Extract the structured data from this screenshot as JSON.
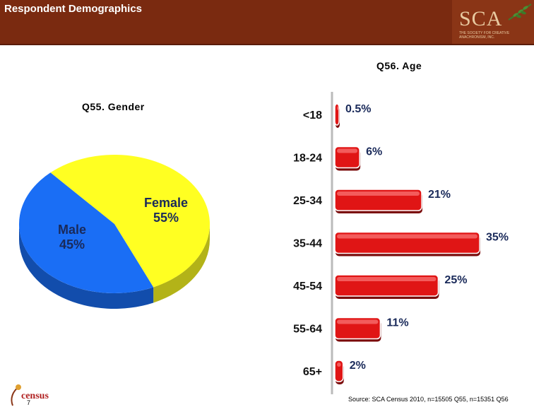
{
  "header": {
    "title": "Respondent Demographics",
    "logo_text": "SCA",
    "logo_sub": "THE SOCIETY FOR CREATIVE ANACHRONISM, INC."
  },
  "gender_title": "Q55. Gender",
  "age_title": "Q56. Age",
  "footer": {
    "page_number": "7",
    "source": "Source: SCA Census 2010, n=15505 Q55, n=15351 Q56",
    "badge_text": "census"
  },
  "colors": {
    "header_bg": "#7a2a10",
    "male": "#1a6ef5",
    "female": "#ffff22",
    "bar": "#e01515"
  },
  "chart_data": [
    {
      "type": "pie",
      "title": "Q55. Gender",
      "slices": [
        {
          "label": "Female",
          "value": 55,
          "value_label": "55%",
          "color": "#ffff22"
        },
        {
          "label": "Male",
          "value": 45,
          "value_label": "45%",
          "color": "#1a6ef5"
        }
      ]
    },
    {
      "type": "bar",
      "orientation": "horizontal",
      "title": "Q56. Age",
      "categories": [
        "<18",
        "18-24",
        "25-34",
        "35-44",
        "45-54",
        "55-64",
        "65+"
      ],
      "values": [
        0.5,
        6,
        21,
        35,
        25,
        11,
        2
      ],
      "value_labels": [
        "0.5%",
        "6%",
        "21%",
        "35%",
        "25%",
        "11%",
        "2%"
      ],
      "xlim": [
        0,
        35
      ],
      "grid": false,
      "bar_color": "#e01515"
    }
  ]
}
